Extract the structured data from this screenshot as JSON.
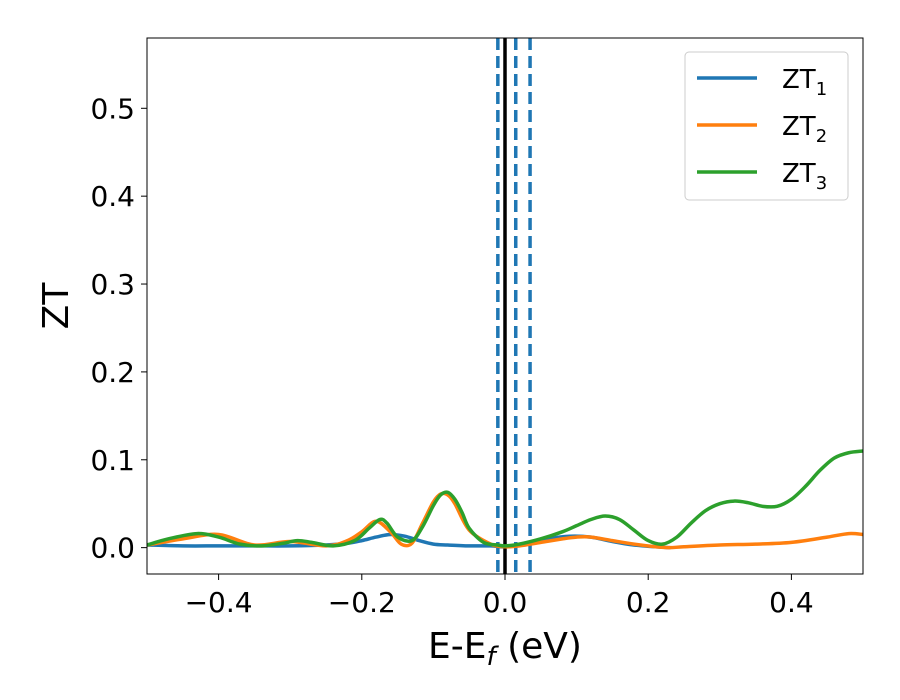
{
  "chart_data": {
    "type": "line",
    "xlabel": "E-E_f (eV)",
    "ylabel": "ZT",
    "xlim": [
      -0.5,
      0.5
    ],
    "ylim": [
      -0.03,
      0.58
    ],
    "grid": false,
    "legend_position": "top-right",
    "x_ticks": [
      -0.4,
      -0.2,
      0.0,
      0.2,
      0.4
    ],
    "x_tick_labels": [
      "−0.4",
      "−0.2",
      "0.0",
      "0.2",
      "0.4"
    ],
    "y_ticks": [
      0.0,
      0.1,
      0.2,
      0.3,
      0.4,
      0.5
    ],
    "y_tick_labels": [
      "0.0",
      "0.1",
      "0.2",
      "0.3",
      "0.4",
      "0.5"
    ],
    "vertical_lines": [
      {
        "x": 0.0,
        "color": "#000000",
        "style": "solid"
      },
      {
        "x": -0.01,
        "color": "#1f77b4",
        "style": "dashed"
      },
      {
        "x": 0.015,
        "color": "#1f77b4",
        "style": "dashed"
      },
      {
        "x": 0.035,
        "color": "#1f77b4",
        "style": "dashed"
      }
    ],
    "series": [
      {
        "name": "ZT1",
        "legend_main": "ZT",
        "legend_sub": "1",
        "color": "#1f77b4",
        "x": [
          -0.5,
          -0.45,
          -0.4,
          -0.35,
          -0.3,
          -0.25,
          -0.22,
          -0.2,
          -0.18,
          -0.16,
          -0.14,
          -0.12,
          -0.1,
          -0.08,
          -0.05,
          -0.02,
          0.0,
          0.03,
          0.06,
          0.09,
          0.12,
          0.15,
          0.18,
          0.21,
          0.23
        ],
        "y": [
          0.003,
          0.002,
          0.002,
          0.002,
          0.002,
          0.003,
          0.005,
          0.008,
          0.012,
          0.015,
          0.013,
          0.008,
          0.004,
          0.003,
          0.002,
          0.002,
          0.001,
          0.005,
          0.01,
          0.013,
          0.012,
          0.007,
          0.003,
          0.001,
          0.0
        ]
      },
      {
        "name": "ZT2",
        "legend_main": "ZT",
        "legend_sub": "2",
        "color": "#ff7f0e",
        "x": [
          -0.5,
          -0.45,
          -0.4,
          -0.35,
          -0.3,
          -0.25,
          -0.22,
          -0.2,
          -0.18,
          -0.16,
          -0.145,
          -0.13,
          -0.115,
          -0.1,
          -0.09,
          -0.08,
          -0.07,
          -0.05,
          -0.02,
          0.0,
          0.02,
          0.05,
          0.08,
          0.1,
          0.12,
          0.15,
          0.18,
          0.21,
          0.23,
          0.25,
          0.3,
          0.35,
          0.4,
          0.45,
          0.48,
          0.5
        ],
        "y": [
          0.003,
          0.01,
          0.015,
          0.003,
          0.007,
          0.002,
          0.008,
          0.018,
          0.03,
          0.018,
          0.004,
          0.005,
          0.028,
          0.052,
          0.061,
          0.06,
          0.05,
          0.02,
          0.004,
          0.001,
          0.002,
          0.006,
          0.01,
          0.012,
          0.012,
          0.008,
          0.004,
          0.001,
          0.0,
          0.001,
          0.003,
          0.004,
          0.006,
          0.012,
          0.016,
          0.015
        ]
      },
      {
        "name": "ZT3",
        "legend_main": "ZT",
        "legend_sub": "3",
        "color": "#2ca02c",
        "x": [
          -0.5,
          -0.47,
          -0.43,
          -0.4,
          -0.37,
          -0.34,
          -0.31,
          -0.29,
          -0.27,
          -0.24,
          -0.21,
          -0.19,
          -0.175,
          -0.165,
          -0.15,
          -0.13,
          -0.115,
          -0.1,
          -0.09,
          -0.08,
          -0.07,
          -0.06,
          -0.05,
          -0.03,
          -0.01,
          0.0,
          0.02,
          0.05,
          0.08,
          0.1,
          0.12,
          0.14,
          0.16,
          0.18,
          0.2,
          0.22,
          0.24,
          0.26,
          0.28,
          0.3,
          0.32,
          0.34,
          0.36,
          0.38,
          0.4,
          0.42,
          0.44,
          0.46,
          0.48,
          0.5
        ],
        "y": [
          0.003,
          0.01,
          0.016,
          0.012,
          0.004,
          0.002,
          0.005,
          0.008,
          0.006,
          0.002,
          0.008,
          0.022,
          0.032,
          0.028,
          0.012,
          0.008,
          0.024,
          0.048,
          0.06,
          0.063,
          0.055,
          0.04,
          0.022,
          0.006,
          0.003,
          0.002,
          0.004,
          0.01,
          0.018,
          0.025,
          0.032,
          0.036,
          0.032,
          0.02,
          0.008,
          0.004,
          0.012,
          0.028,
          0.042,
          0.05,
          0.053,
          0.051,
          0.047,
          0.047,
          0.055,
          0.07,
          0.088,
          0.102,
          0.108,
          0.11
        ]
      }
    ]
  }
}
